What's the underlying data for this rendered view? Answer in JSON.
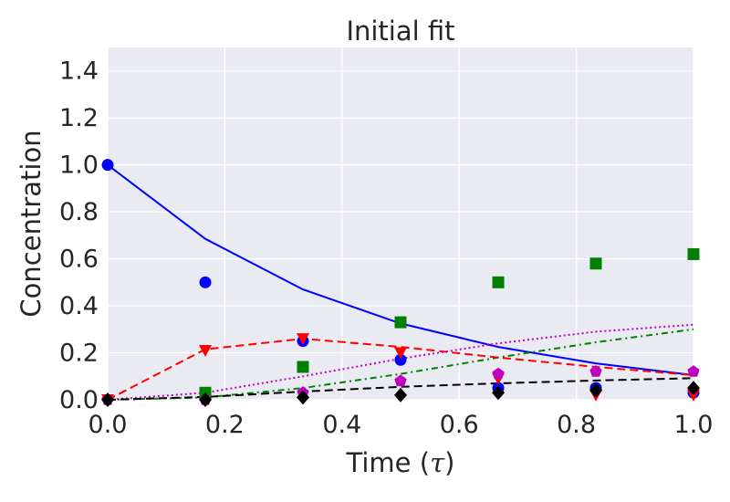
{
  "chart_data": {
    "type": "line",
    "title": "Initial fit",
    "xlabel_text": "Time (",
    "xlabel_symbol": "τ",
    "xlabel_close": ")",
    "ylabel": "Concentration",
    "xlim": [
      0.0,
      1.0
    ],
    "ylim": [
      0.0,
      1.5
    ],
    "xticks": [
      0.0,
      0.2,
      0.4,
      0.6,
      0.8,
      1.0
    ],
    "xtick_labels": [
      "0.0",
      "0.2",
      "0.4",
      "0.6",
      "0.8",
      "1.0"
    ],
    "yticks": [
      0.0,
      0.2,
      0.4,
      0.6,
      0.8,
      1.0,
      1.2,
      1.4
    ],
    "ytick_labels": [
      "0.0",
      "0.2",
      "0.4",
      "0.6",
      "0.8",
      "1.0",
      "1.2",
      "1.4"
    ],
    "grid": true,
    "series": [
      {
        "name": "blue",
        "color": "#0000ff",
        "line_style": "solid",
        "marker": "circle",
        "fit_x": [
          0.0,
          0.1667,
          0.3333,
          0.5,
          0.6667,
          0.8333,
          1.0
        ],
        "fit_y": [
          1.0,
          0.685,
          0.47,
          0.325,
          0.225,
          0.155,
          0.105
        ],
        "obs_x": [
          0.0,
          0.1667,
          0.3333,
          0.5,
          0.6667,
          0.8333,
          1.0
        ],
        "obs_y": [
          1.0,
          0.5,
          0.25,
          0.17,
          0.05,
          0.05,
          0.03
        ]
      },
      {
        "name": "green",
        "color": "#008000",
        "line_style": "dashdot",
        "marker": "square",
        "fit_x": [
          0.0,
          0.1667,
          0.3333,
          0.5,
          0.6667,
          0.8333,
          1.0
        ],
        "fit_y": [
          0.0,
          0.01,
          0.05,
          0.11,
          0.18,
          0.245,
          0.3
        ],
        "obs_x": [
          0.1667,
          0.3333,
          0.5,
          0.6667,
          0.8333,
          1.0
        ],
        "obs_y": [
          0.03,
          0.14,
          0.33,
          0.5,
          0.58,
          0.62
        ]
      },
      {
        "name": "red",
        "color": "#ff0000",
        "line_style": "dashed",
        "marker": "triangle-down",
        "fit_x": [
          0.0,
          0.1667,
          0.3333,
          0.5,
          0.6667,
          0.8333,
          1.0
        ],
        "fit_y": [
          0.0,
          0.215,
          0.26,
          0.225,
          0.18,
          0.14,
          0.105
        ],
        "obs_x": [
          0.0,
          0.1667,
          0.3333,
          0.5,
          0.6667,
          0.8333,
          1.0
        ],
        "obs_y": [
          0.0,
          0.21,
          0.26,
          0.2,
          0.09,
          0.02,
          0.02
        ]
      },
      {
        "name": "magenta",
        "color": "#bf00bf",
        "line_style": "dotted",
        "marker": "pentagon",
        "fit_x": [
          0.0,
          0.1667,
          0.3333,
          0.5,
          0.6667,
          0.8333,
          1.0
        ],
        "fit_y": [
          0.0,
          0.03,
          0.1,
          0.175,
          0.24,
          0.29,
          0.32
        ],
        "obs_x": [
          0.0,
          0.1667,
          0.3333,
          0.5,
          0.6667,
          0.8333,
          1.0
        ],
        "obs_y": [
          0.0,
          0.0,
          0.03,
          0.08,
          0.11,
          0.12,
          0.12
        ]
      },
      {
        "name": "black",
        "color": "#000000",
        "line_style": "dashed",
        "marker": "diamond",
        "fit_x": [
          0.0,
          0.1667,
          0.3333,
          0.5,
          0.6667,
          0.8333,
          1.0
        ],
        "fit_y": [
          0.0,
          0.012,
          0.035,
          0.055,
          0.07,
          0.082,
          0.092
        ],
        "obs_x": [
          0.0,
          0.1667,
          0.3333,
          0.5,
          0.6667,
          0.8333,
          1.0
        ],
        "obs_y": [
          0.0,
          0.0,
          0.01,
          0.02,
          0.03,
          0.04,
          0.05
        ]
      }
    ]
  }
}
